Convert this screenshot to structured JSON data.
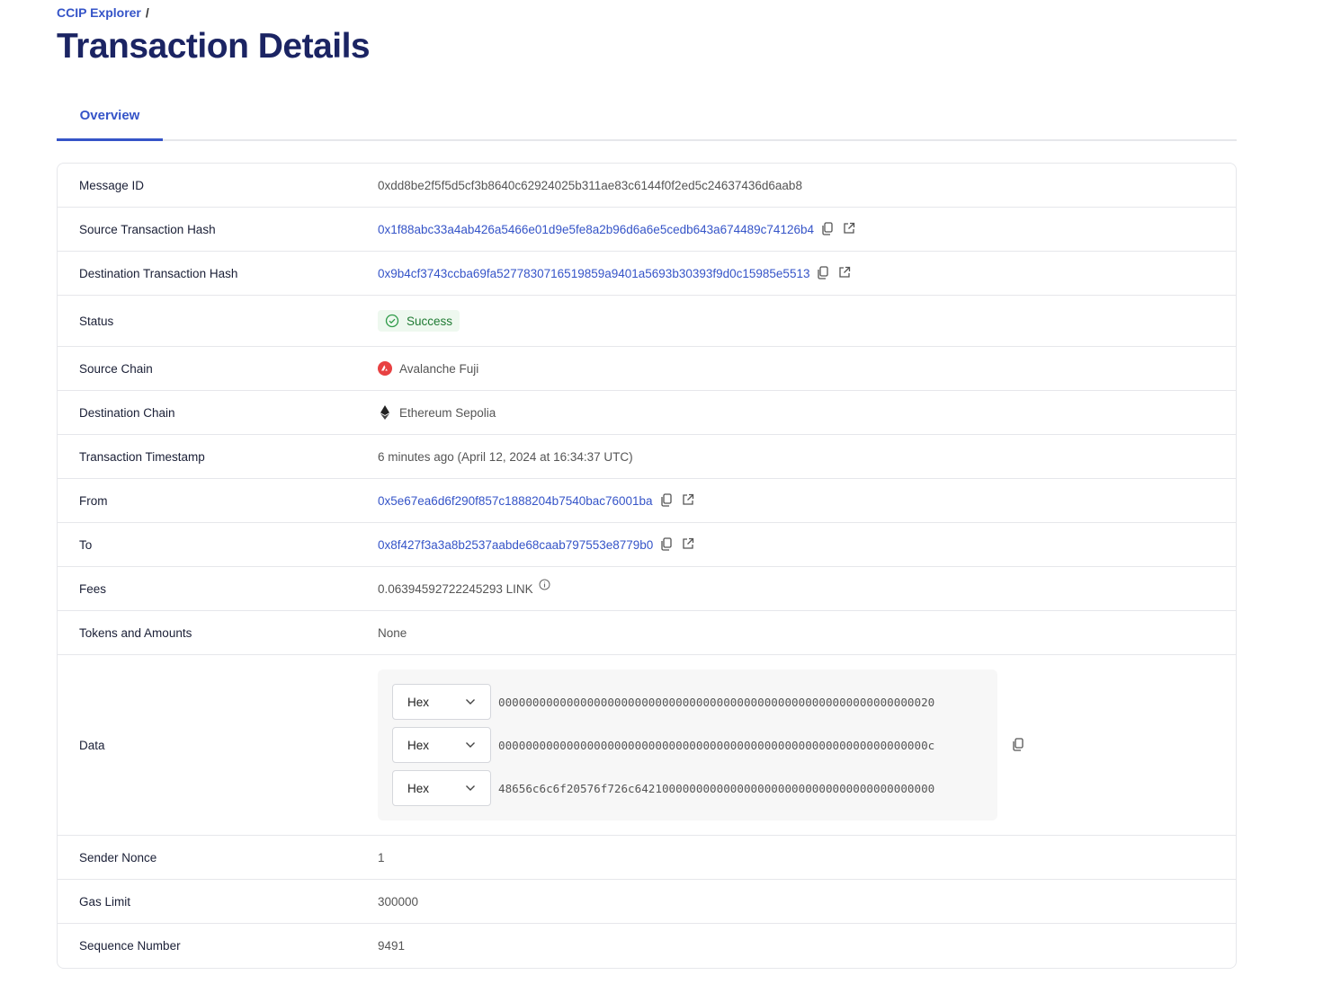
{
  "breadcrumb": {
    "root": "CCIP Explorer",
    "separator": "/"
  },
  "page_title": "Transaction Details",
  "tabs": [
    {
      "label": "Overview",
      "active": true
    }
  ],
  "accent_color": "#3554c8",
  "rows": {
    "message_id": {
      "label": "Message ID",
      "value": "0xdd8be2f5f5d5cf3b8640c62924025b311ae83c6144f0f2ed5c24637436d6aab8"
    },
    "source_tx": {
      "label": "Source Transaction Hash",
      "value": "0x1f88abc33a4ab426a5466e01d9e5fe8a2b96d6a6e5cedb643a674489c74126b4"
    },
    "dest_tx": {
      "label": "Destination Transaction Hash",
      "value": "0x9b4cf3743ccba69fa5277830716519859a9401a5693b30393f9d0c15985e5513"
    },
    "status": {
      "label": "Status",
      "value": "Success",
      "icon": "check-circle-icon",
      "color": "#1f7a33"
    },
    "source_chain": {
      "label": "Source Chain",
      "value": "Avalanche Fuji",
      "icon": "avalanche-icon"
    },
    "dest_chain": {
      "label": "Destination Chain",
      "value": "Ethereum Sepolia",
      "icon": "ethereum-icon"
    },
    "timestamp": {
      "label": "Transaction Timestamp",
      "value": "6 minutes ago (April 12, 2024 at 16:34:37 UTC)"
    },
    "from": {
      "label": "From",
      "value": "0x5e67ea6d6f290f857c1888204b7540bac76001ba"
    },
    "to": {
      "label": "To",
      "value": "0x8f427f3a3a8b2537aabde68caab797553e8779b0"
    },
    "fees": {
      "label": "Fees",
      "value": "0.06394592722245293 LINK"
    },
    "tokens": {
      "label": "Tokens and Amounts",
      "value": "None"
    },
    "data": {
      "label": "Data",
      "lines": [
        {
          "format": "Hex",
          "value": "0000000000000000000000000000000000000000000000000000000000000020"
        },
        {
          "format": "Hex",
          "value": "000000000000000000000000000000000000000000000000000000000000000c"
        },
        {
          "format": "Hex",
          "value": "48656c6c6f20576f726c64210000000000000000000000000000000000000000"
        }
      ]
    },
    "nonce": {
      "label": "Sender Nonce",
      "value": "1"
    },
    "gas": {
      "label": "Gas Limit",
      "value": "300000"
    },
    "sequence": {
      "label": "Sequence Number",
      "value": "9491"
    }
  }
}
